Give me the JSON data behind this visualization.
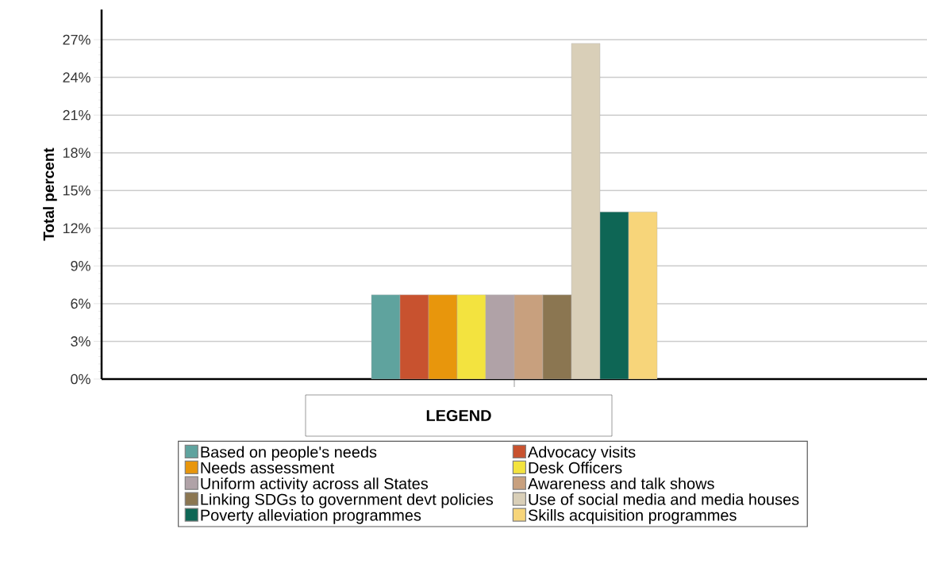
{
  "chart_data": {
    "type": "bar",
    "ylabel": "Total percent",
    "legend_title": "LEGEND",
    "legend": "bottom",
    "grid": "y",
    "categories": [
      null
    ],
    "ylim": [
      0,
      29.4
    ],
    "yticks": [
      {
        "value": 0,
        "label": "0%"
      },
      {
        "value": 3,
        "label": "3%"
      },
      {
        "value": 6,
        "label": "6%"
      },
      {
        "value": 9,
        "label": "9%"
      },
      {
        "value": 12,
        "label": "12%"
      },
      {
        "value": 15,
        "label": "15%"
      },
      {
        "value": 18,
        "label": "18%"
      },
      {
        "value": 21,
        "label": "21%"
      },
      {
        "value": 24,
        "label": "24%"
      },
      {
        "value": 27,
        "label": "27%"
      }
    ],
    "series": [
      {
        "name": "Based on people's needs",
        "color": "#5fa39e",
        "values": [
          6.7
        ]
      },
      {
        "name": "Advocacy visits",
        "color": "#c8522f",
        "values": [
          6.7
        ]
      },
      {
        "name": "Needs assessment",
        "color": "#e8960c",
        "values": [
          6.7
        ]
      },
      {
        "name": "Desk Officers",
        "color": "#f3e33f",
        "values": [
          6.7
        ]
      },
      {
        "name": "Uniform activity across all States",
        "color": "#b0a2a7",
        "values": [
          6.7
        ]
      },
      {
        "name": "Awareness and talk shows",
        "color": "#c8a07e",
        "values": [
          6.7
        ]
      },
      {
        "name": "Linking SDGs to government devt policies",
        "color": "#8b7651",
        "values": [
          6.7
        ]
      },
      {
        "name": "Use of social media and media houses",
        "color": "#d9cfb8",
        "values": [
          26.7
        ]
      },
      {
        "name": "Poverty alleviation programmes",
        "color": "#0e6655",
        "values": [
          13.3
        ]
      },
      {
        "name": "Skills acquisition programmes",
        "color": "#f7d57a",
        "values": [
          13.3
        ]
      }
    ]
  }
}
